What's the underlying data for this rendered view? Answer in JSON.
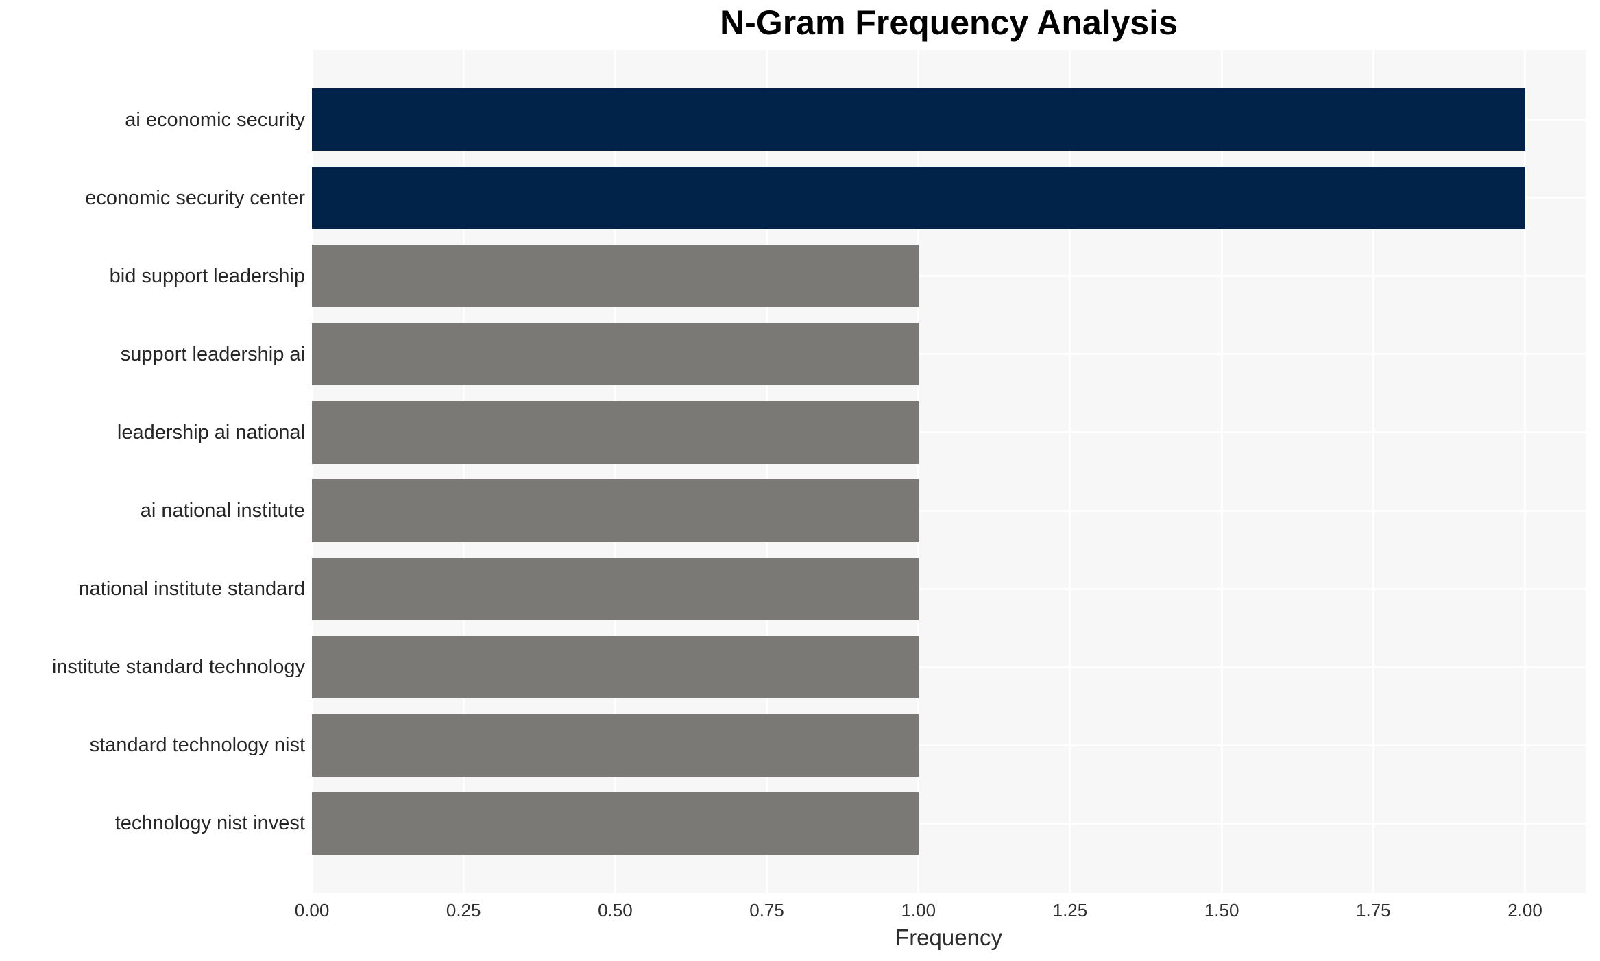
{
  "title": "N-Gram Frequency Analysis",
  "colors": {
    "highlight_bar": "#012349",
    "default_bar": "#7a7975",
    "plot_background": "#f7f7f7",
    "gridline": "#ffffff",
    "title_text": "#000000",
    "label_text": "#262626",
    "tick_text": "#2e2e2e"
  },
  "chart_data": {
    "type": "bar",
    "orientation": "horizontal",
    "title": "N-Gram Frequency Analysis",
    "xlabel": "Frequency",
    "ylabel": "",
    "categories": [
      "ai economic security",
      "economic security center",
      "bid support leadership",
      "support leadership ai",
      "leadership ai national",
      "ai national institute",
      "national institute standard",
      "institute standard technology",
      "standard technology nist",
      "technology nist invest"
    ],
    "values": [
      2.0,
      2.0,
      1.0,
      1.0,
      1.0,
      1.0,
      1.0,
      1.0,
      1.0,
      1.0
    ],
    "bar_colors": [
      "#012349",
      "#012349",
      "#7a7975",
      "#7a7975",
      "#7a7975",
      "#7a7975",
      "#7a7975",
      "#7a7975",
      "#7a7975",
      "#7a7975"
    ],
    "xlim": [
      0,
      2.1
    ],
    "xticks": [
      "0.00",
      "0.25",
      "0.50",
      "0.75",
      "1.00",
      "1.25",
      "1.50",
      "1.75",
      "2.00"
    ],
    "xtick_values": [
      0,
      0.25,
      0.5,
      0.75,
      1.0,
      1.25,
      1.5,
      1.75,
      2.0
    ],
    "grid": true,
    "legend": false
  }
}
